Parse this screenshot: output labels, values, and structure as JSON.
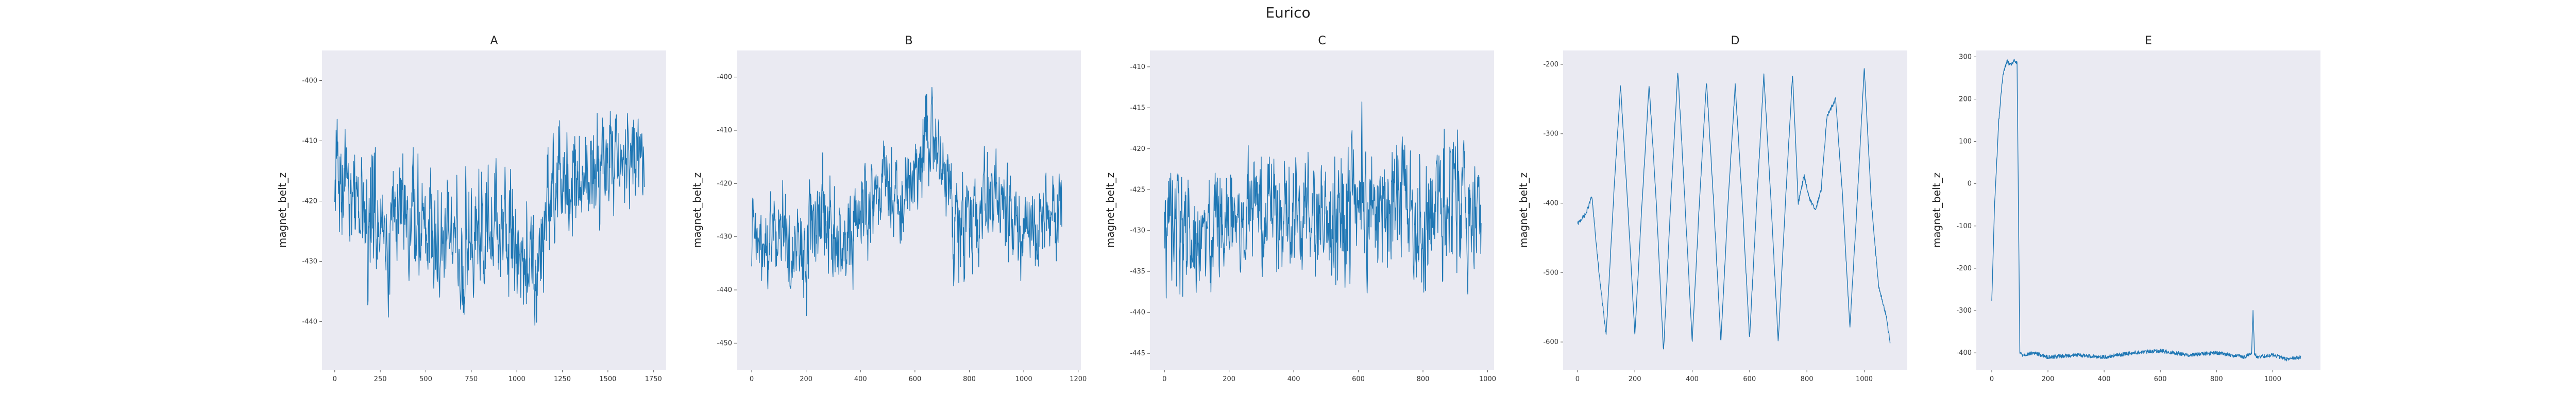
{
  "figure": {
    "title": "Eurico"
  },
  "chart_data": [
    {
      "type": "line",
      "title": "A",
      "xlabel": "",
      "ylabel": "magnet_belt_z",
      "xlim": [
        -70,
        1820
      ],
      "ylim": [
        -448,
        -395
      ],
      "xticks": [
        0,
        250,
        500,
        750,
        1000,
        1250,
        1500,
        1750
      ],
      "yticks": [
        -400,
        -410,
        -420,
        -430,
        -440
      ],
      "grid": false,
      "series": [
        {
          "x": [
            0,
            50,
            100,
            150,
            200,
            250,
            300,
            350,
            400,
            450,
            500,
            550,
            600,
            650,
            700,
            750,
            800,
            850,
            900,
            950,
            1000,
            1050,
            1100,
            1150,
            1200,
            1250,
            1300,
            1350,
            1400,
            1450,
            1500,
            1550,
            1600,
            1650,
            1700
          ],
          "y": [
            -418,
            -415,
            -420,
            -422,
            -425,
            -423,
            -427,
            -420,
            -424,
            -426,
            -422,
            -428,
            -425,
            -423,
            -430,
            -427,
            -424,
            -428,
            -425,
            -426,
            -430,
            -428,
            -432,
            -426,
            -418,
            -415,
            -420,
            -416,
            -418,
            -412,
            -414,
            -410,
            -414,
            -411,
            -413
          ],
          "high": [
            -402,
            -404,
            -405,
            -406,
            -400,
            -408,
            -405,
            -408,
            -407,
            -409,
            -408,
            -405,
            -410,
            -408,
            -406,
            -409,
            -405,
            -410,
            -407,
            -409,
            -408,
            -406,
            -410,
            -408,
            -402,
            -401,
            -400,
            -402,
            -405,
            -400,
            -397,
            -402,
            -400,
            -399,
            -401
          ],
          "low": [
            -432,
            -430,
            -432,
            -435,
            -440,
            -433,
            -442,
            -434,
            -437,
            -439,
            -437,
            -440,
            -436,
            -433,
            -444,
            -438,
            -436,
            -441,
            -439,
            -437,
            -440,
            -441,
            -443,
            -439,
            -430,
            -426,
            -432,
            -428,
            -430,
            -426,
            -428,
            -426,
            -427,
            -425,
            -426
          ]
        }
      ]
    },
    {
      "type": "line",
      "title": "B",
      "xlabel": "",
      "ylabel": "magnet_belt_z",
      "xlim": [
        -55,
        1210
      ],
      "ylim": [
        -455,
        -395
      ],
      "xticks": [
        0,
        200,
        400,
        600,
        800,
        1000,
        1200
      ],
      "yticks": [
        -400,
        -410,
        -420,
        -430,
        -440,
        -450
      ],
      "grid": false,
      "series": [
        {
          "x": [
            0,
            50,
            100,
            150,
            200,
            250,
            300,
            350,
            400,
            450,
            500,
            550,
            600,
            650,
            700,
            750,
            800,
            850,
            900,
            950,
            1000,
            1050,
            1100,
            1140
          ],
          "y": [
            -430,
            -432,
            -428,
            -435,
            -433,
            -425,
            -430,
            -432,
            -427,
            -422,
            -420,
            -426,
            -418,
            -412,
            -415,
            -430,
            -428,
            -425,
            -423,
            -427,
            -430,
            -428,
            -426,
            -425
          ],
          "high": [
            -418,
            -415,
            -412,
            -420,
            -416,
            -410,
            -414,
            -417,
            -412,
            -408,
            -406,
            -412,
            -405,
            -397,
            -403,
            -416,
            -412,
            -410,
            -410,
            -414,
            -418,
            -415,
            -412,
            -412
          ],
          "low": [
            -442,
            -446,
            -440,
            -448,
            -451,
            -440,
            -444,
            -446,
            -440,
            -436,
            -434,
            -440,
            -432,
            -426,
            -428,
            -448,
            -442,
            -440,
            -437,
            -440,
            -443,
            -440,
            -438,
            -436
          ]
        }
      ]
    },
    {
      "type": "line",
      "title": "C",
      "xlabel": "",
      "ylabel": "magnet_belt_z",
      "xlim": [
        -45,
        1020
      ],
      "ylim": [
        -447,
        -408
      ],
      "xticks": [
        0,
        200,
        400,
        600,
        800,
        1000
      ],
      "yticks": [
        -410,
        -415,
        -420,
        -425,
        -430,
        -435,
        -440,
        -445
      ],
      "grid": false,
      "series": [
        {
          "x": [
            0,
            50,
            100,
            150,
            200,
            250,
            300,
            350,
            400,
            450,
            500,
            550,
            600,
            650,
            700,
            750,
            800,
            850,
            900,
            950,
            980
          ],
          "y": [
            -430,
            -428,
            -432,
            -429,
            -427,
            -430,
            -428,
            -426,
            -429,
            -427,
            -428,
            -430,
            -426,
            -429,
            -427,
            -428,
            -430,
            -428,
            -427,
            -429,
            -428
          ],
          "high": [
            -422,
            -418,
            -420,
            -418,
            -415,
            -418,
            -416,
            -414,
            -418,
            -412,
            -415,
            -413,
            -412,
            -418,
            -414,
            -416,
            -415,
            -412,
            -413,
            -412,
            -420
          ],
          "low": [
            -440,
            -444,
            -442,
            -440,
            -438,
            -441,
            -440,
            -439,
            -441,
            -438,
            -440,
            -442,
            -438,
            -441,
            -439,
            -440,
            -442,
            -440,
            -439,
            -441,
            -440
          ]
        }
      ]
    },
    {
      "type": "line",
      "title": "D",
      "xlabel": "",
      "ylabel": "magnet_belt_z",
      "xlim": [
        -50,
        1150
      ],
      "ylim": [
        -640,
        -180
      ],
      "xticks": [
        0,
        200,
        400,
        600,
        800,
        1000
      ],
      "yticks": [
        -200,
        -300,
        -400,
        -500,
        -600
      ],
      "grid": false,
      "series": [
        {
          "x": [
            0,
            30,
            50,
            75,
            100,
            125,
            150,
            175,
            200,
            225,
            250,
            275,
            300,
            325,
            350,
            375,
            400,
            425,
            450,
            475,
            500,
            525,
            550,
            575,
            600,
            625,
            650,
            675,
            700,
            725,
            750,
            770,
            790,
            810,
            830,
            850,
            870,
            900,
            925,
            950,
            975,
            1000,
            1025,
            1050,
            1075,
            1090
          ],
          "y": [
            -430,
            -415,
            -390,
            -500,
            -590,
            -400,
            -230,
            -400,
            -590,
            -400,
            -230,
            -400,
            -615,
            -400,
            -210,
            -400,
            -600,
            -400,
            -225,
            -400,
            -600,
            -400,
            -230,
            -400,
            -595,
            -400,
            -215,
            -400,
            -600,
            -400,
            -215,
            -400,
            -360,
            -395,
            -410,
            -380,
            -275,
            -250,
            -395,
            -580,
            -400,
            -205,
            -400,
            -520,
            -560,
            -600
          ]
        }
      ]
    },
    {
      "type": "line",
      "title": "E",
      "xlabel": "",
      "ylabel": "magnet_belt_z",
      "xlim": [
        -55,
        1170
      ],
      "ylim": [
        -440,
        315
      ],
      "xticks": [
        0,
        200,
        400,
        600,
        800,
        1000
      ],
      "yticks": [
        300,
        200,
        100,
        0,
        -100,
        -200,
        -300,
        -400
      ],
      "grid": false,
      "series": [
        {
          "x": [
            0,
            10,
            25,
            40,
            55,
            65,
            80,
            90,
            100,
            110,
            150,
            200,
            300,
            400,
            500,
            600,
            700,
            800,
            900,
            925,
            930,
            935,
            945,
            1000,
            1050,
            1100
          ],
          "y": [
            -280,
            -50,
            150,
            260,
            290,
            280,
            290,
            285,
            -400,
            -405,
            -400,
            -410,
            -405,
            -410,
            -400,
            -395,
            -405,
            -400,
            -410,
            -400,
            -300,
            -400,
            -410,
            -405,
            -415,
            -410
          ]
        }
      ]
    }
  ]
}
